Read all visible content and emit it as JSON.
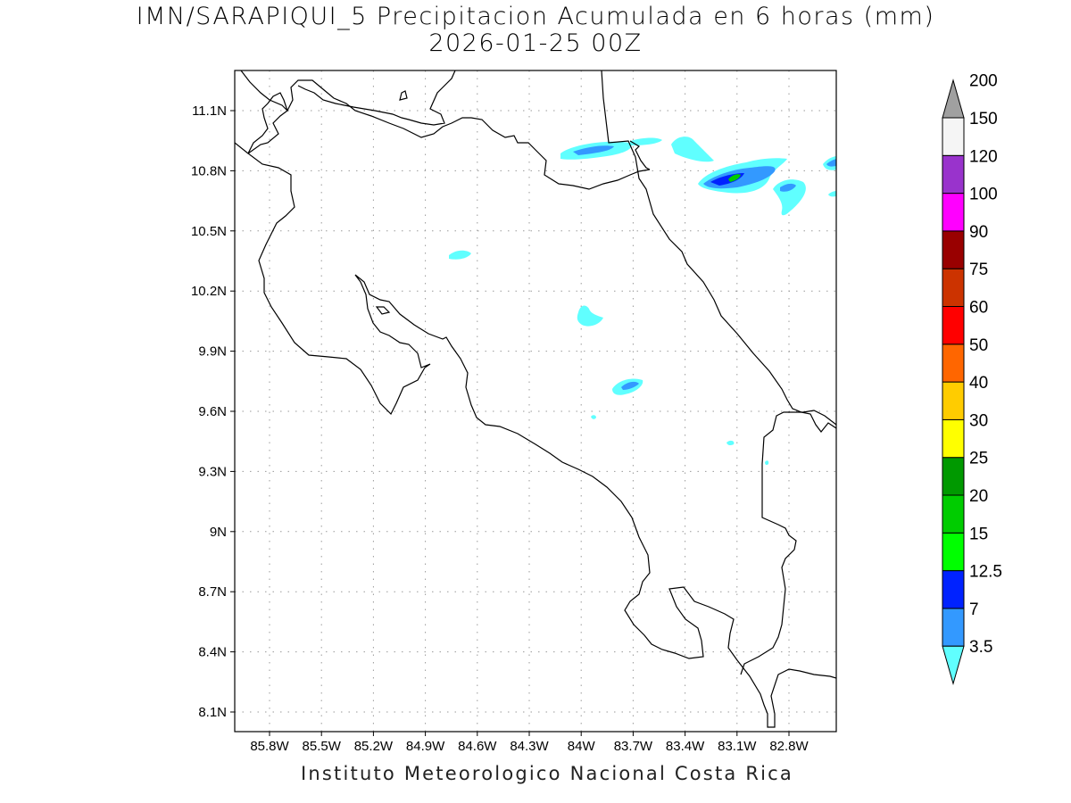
{
  "title": {
    "line1": "IMN/SARAPIQUI_5 Precipitacion Acumulada en 6 horas (mm)",
    "line2": "2026-01-25 00Z"
  },
  "credit": "Instituto Meteorologico Nacional Costa Rica",
  "map": {
    "lat_ticks": [
      "11.1N",
      "10.8N",
      "10.5N",
      "10.2N",
      "9.9N",
      "9.6N",
      "9.3N",
      "9N",
      "8.7N",
      "8.4N",
      "8.1N"
    ],
    "lon_ticks": [
      "85.8W",
      "85.5W",
      "85.2W",
      "84.9W",
      "84.6W",
      "84.3W",
      "84W",
      "83.7W",
      "83.4W",
      "83.1W",
      "82.8W"
    ],
    "grid": "dotted",
    "colorbar": {
      "labels": [
        "3.5",
        "7",
        "12.5",
        "15",
        "20",
        "25",
        "30",
        "40",
        "50",
        "60",
        "75",
        "90",
        "100",
        "120",
        "150",
        "200"
      ],
      "colors": [
        "#60ffff",
        "#3399ff",
        "#0022ff",
        "#00ff00",
        "#00cc00",
        "#009900",
        "#ffff00",
        "#ffcc00",
        "#ff6600",
        "#ff0000",
        "#cc3300",
        "#990000",
        "#ff00ff",
        "#9933cc",
        "#f5f5f5",
        "#a0a0a0"
      ]
    }
  }
}
